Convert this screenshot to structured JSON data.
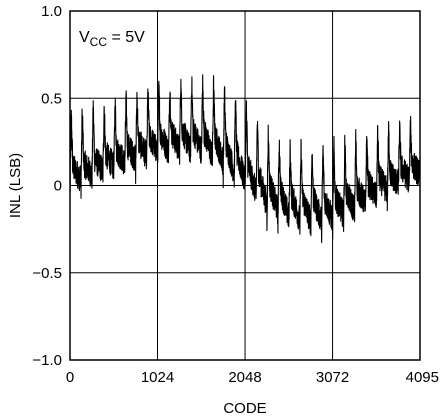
{
  "chart_data": {
    "type": "line",
    "xlabel": "CODE",
    "ylabel": "INL (LSB)",
    "xlim": [
      0,
      4095
    ],
    "ylim": [
      -1.0,
      1.0
    ],
    "xticks": [
      0,
      1024,
      2048,
      3072,
      4095
    ],
    "xtick_labels": [
      "0",
      "1024",
      "2048",
      "3072",
      "4095"
    ],
    "yticks": [
      1.0,
      0.5,
      0,
      -0.5,
      -1.0
    ],
    "ytick_labels": [
      "1.0",
      "0.5",
      "0",
      "−0.5",
      "−1.0"
    ],
    "grid": true,
    "annotation": {
      "main": "V",
      "sub": "CC",
      "rest": " = 5V"
    },
    "line_color": "#000000",
    "series": [
      {
        "periodic_structure": {
          "period_codes": 128,
          "envelope_x": [
            0,
            256,
            512,
            768,
            1024,
            1280,
            1536,
            1792,
            2048,
            2304,
            2560,
            2816,
            3072,
            3328,
            3584,
            3840,
            4095
          ],
          "envelope_center": [
            0.1,
            0.15,
            0.2,
            0.25,
            0.3,
            0.32,
            0.32,
            0.26,
            0.14,
            0.02,
            -0.05,
            -0.08,
            -0.07,
            -0.02,
            0.04,
            0.1,
            0.15
          ],
          "envelope_peak": [
            0.4,
            0.45,
            0.48,
            0.52,
            0.56,
            0.6,
            0.6,
            0.55,
            0.45,
            0.3,
            0.22,
            0.2,
            0.22,
            0.26,
            0.3,
            0.34,
            0.36
          ],
          "envelope_trough": [
            -0.05,
            0.0,
            0.05,
            0.08,
            0.12,
            0.12,
            0.12,
            0.05,
            -0.05,
            -0.2,
            -0.27,
            -0.29,
            -0.28,
            -0.22,
            -0.14,
            -0.06,
            0.0
          ]
        }
      }
    ]
  }
}
